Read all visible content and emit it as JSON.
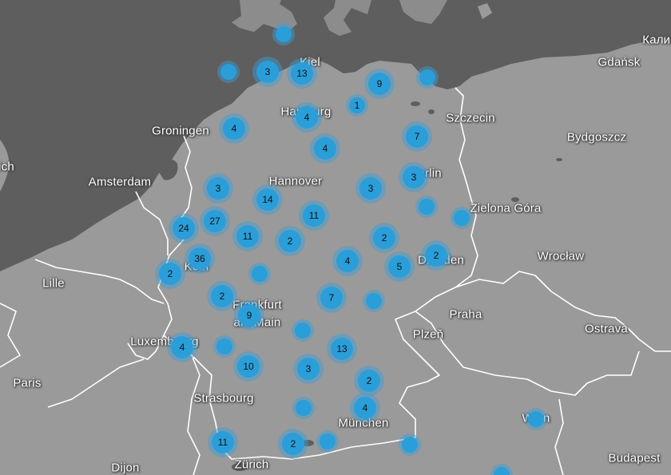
{
  "map": {
    "colors": {
      "water": "#5e5e5e",
      "land": "#9a9a9a",
      "border": "#ffffff",
      "cluster": "#2a9ed9",
      "cluster_halo": "rgba(58,160,220,0.45)"
    },
    "cities": [
      {
        "id": "kaliningrad",
        "label": "Калин"
      },
      {
        "id": "gdansk",
        "label": "Gdańsk"
      },
      {
        "id": "kiel",
        "label": "Kiel"
      },
      {
        "id": "hamburg",
        "label": "Hamburg"
      },
      {
        "id": "szczecin",
        "label": "Szczecin"
      },
      {
        "id": "bydgoszcz",
        "label": "Bydgoszcz"
      },
      {
        "id": "groningen",
        "label": "Groningen"
      },
      {
        "id": "amsterdam",
        "label": "Amsterdam"
      },
      {
        "id": "hannover",
        "label": "Hannover"
      },
      {
        "id": "berlin",
        "label": "Berlin"
      },
      {
        "id": "zielona-gora",
        "label": "Zielona Góra"
      },
      {
        "id": "wroclaw",
        "label": "Wrocław"
      },
      {
        "id": "koln",
        "label": "Köln"
      },
      {
        "id": "dresden",
        "label": "Dresden"
      },
      {
        "id": "lille",
        "label": "Lille"
      },
      {
        "id": "frankfurt-line1",
        "label": "Frankfurt"
      },
      {
        "id": "frankfurt-line2",
        "label": "am Main"
      },
      {
        "id": "praha",
        "label": "Praha"
      },
      {
        "id": "ostrava",
        "label": "Ostrava"
      },
      {
        "id": "plzen",
        "label": "Plzeň"
      },
      {
        "id": "luxembourg",
        "label": "Luxembourg"
      },
      {
        "id": "paris",
        "label": "Paris"
      },
      {
        "id": "strasbourg",
        "label": "Strasbourg"
      },
      {
        "id": "munchen",
        "label": "München"
      },
      {
        "id": "wien",
        "label": "Wien"
      },
      {
        "id": "dijon",
        "label": "Dijon"
      },
      {
        "id": "zurich",
        "label": "Zürich"
      },
      {
        "id": "budapest",
        "label": "Budapest"
      },
      {
        "id": "ich",
        "label": "ich"
      }
    ],
    "clusters": [
      {
        "id": "c01",
        "count": ""
      },
      {
        "id": "c02",
        "count": ""
      },
      {
        "id": "c03",
        "count": "3"
      },
      {
        "id": "c04",
        "count": "13"
      },
      {
        "id": "c05",
        "count": "9"
      },
      {
        "id": "c06",
        "count": ""
      },
      {
        "id": "c07",
        "count": "1"
      },
      {
        "id": "c08",
        "count": "4"
      },
      {
        "id": "c09",
        "count": "4"
      },
      {
        "id": "c10",
        "count": "4"
      },
      {
        "id": "c11",
        "count": "7"
      },
      {
        "id": "c12",
        "count": "3"
      },
      {
        "id": "c13",
        "count": "14"
      },
      {
        "id": "c14",
        "count": "11"
      },
      {
        "id": "c15",
        "count": "3"
      },
      {
        "id": "c16",
        "count": "3"
      },
      {
        "id": "c17",
        "count": ""
      },
      {
        "id": "c18",
        "count": ""
      },
      {
        "id": "c19",
        "count": "24"
      },
      {
        "id": "c20",
        "count": "27"
      },
      {
        "id": "c21",
        "count": "11"
      },
      {
        "id": "c22",
        "count": "2"
      },
      {
        "id": "c23",
        "count": "2"
      },
      {
        "id": "c24",
        "count": "36"
      },
      {
        "id": "c25",
        "count": "4"
      },
      {
        "id": "c26",
        "count": "5"
      },
      {
        "id": "c27",
        "count": "2"
      },
      {
        "id": "c28",
        "count": "2"
      },
      {
        "id": "c29",
        "count": ""
      },
      {
        "id": "c30",
        "count": "2"
      },
      {
        "id": "c31",
        "count": "7"
      },
      {
        "id": "c32",
        "count": ""
      },
      {
        "id": "c33",
        "count": "9"
      },
      {
        "id": "c34",
        "count": ""
      },
      {
        "id": "c35",
        "count": "4"
      },
      {
        "id": "c36",
        "count": ""
      },
      {
        "id": "c37",
        "count": "13"
      },
      {
        "id": "c38",
        "count": "10"
      },
      {
        "id": "c39",
        "count": "3"
      },
      {
        "id": "c40",
        "count": "2"
      },
      {
        "id": "c41",
        "count": ""
      },
      {
        "id": "c42",
        "count": "4"
      },
      {
        "id": "c43",
        "count": "11"
      },
      {
        "id": "c44",
        "count": "2"
      },
      {
        "id": "c45",
        "count": ""
      },
      {
        "id": "c46",
        "count": ""
      },
      {
        "id": "c47",
        "count": ""
      },
      {
        "id": "c48",
        "count": ""
      }
    ]
  }
}
